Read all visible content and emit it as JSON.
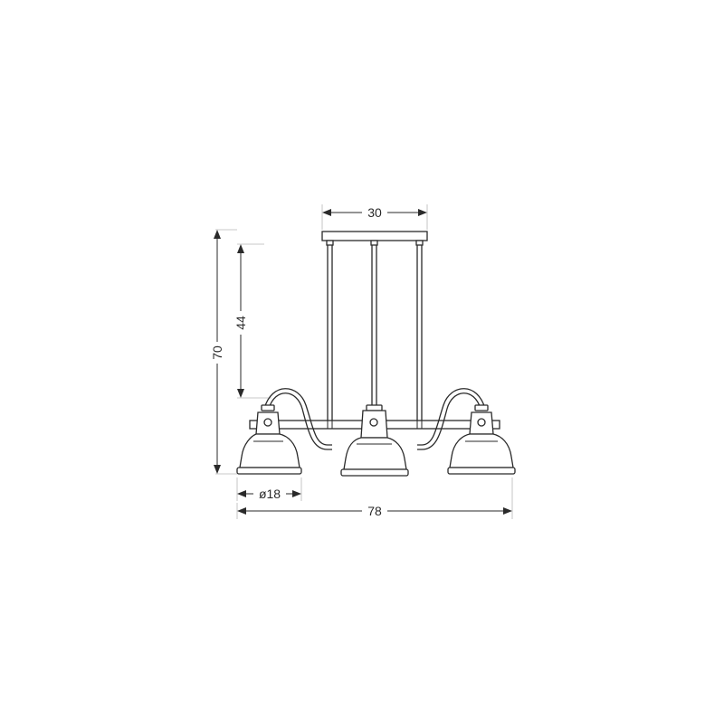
{
  "dimensions": {
    "total_height": "70",
    "hanging_length": "44",
    "canopy_width": "30",
    "shade_diameter": "ø18",
    "total_width": "78"
  }
}
